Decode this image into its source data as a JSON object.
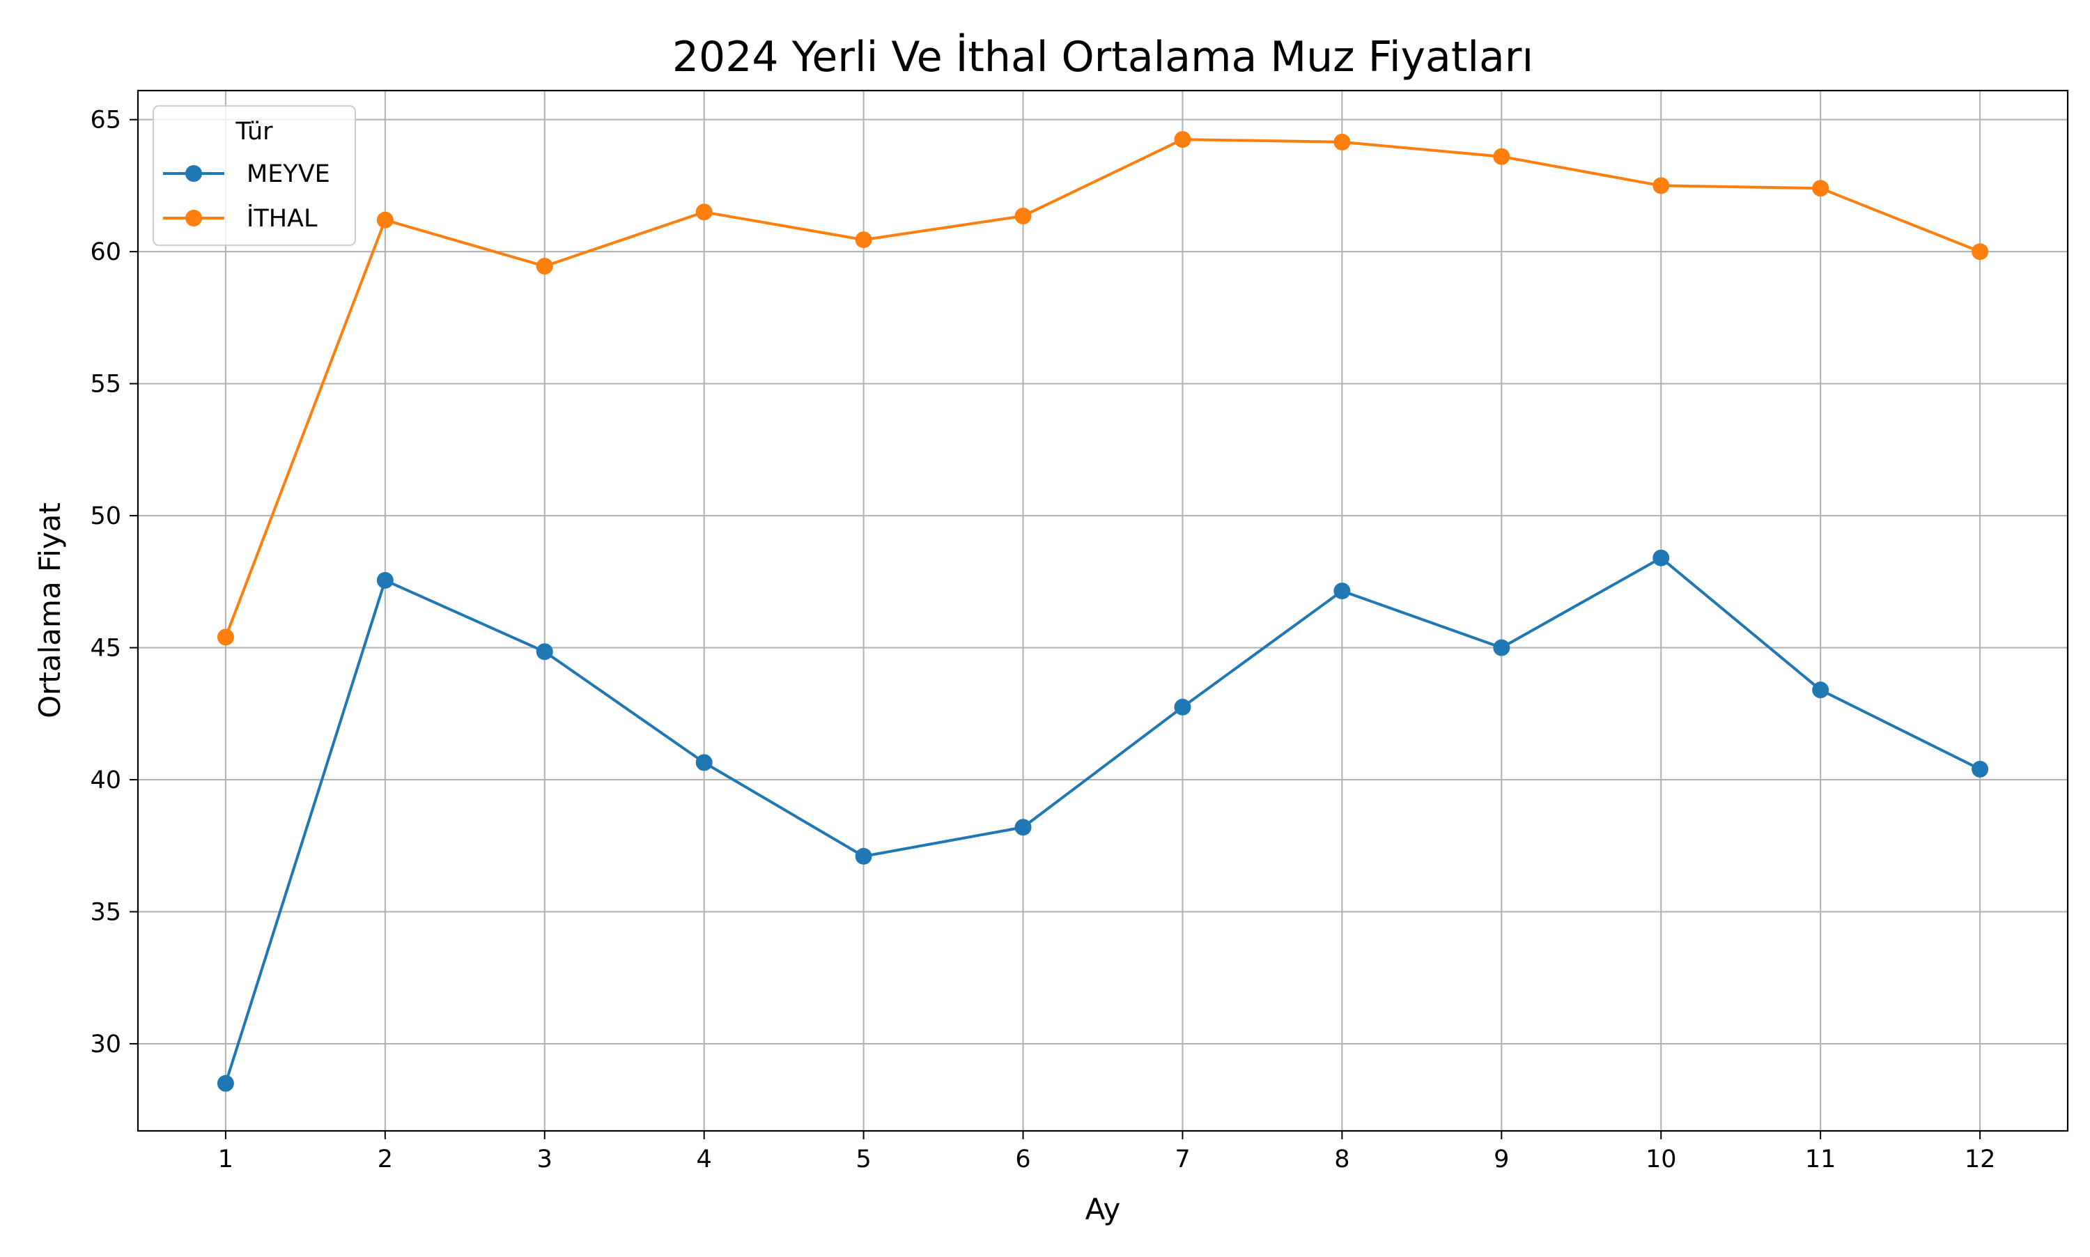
{
  "chart_data": {
    "type": "line",
    "title": "2024 Yerli Ve İthal Ortalama Muz Fiyatları",
    "xlabel": "Ay",
    "ylabel": "Ortalama Fiyat",
    "x": [
      1,
      2,
      3,
      4,
      5,
      6,
      7,
      8,
      9,
      10,
      11,
      12
    ],
    "xticks": [
      "1",
      "2",
      "3",
      "4",
      "5",
      "6",
      "7",
      "8",
      "9",
      "10",
      "11",
      "12"
    ],
    "yticks": [
      30,
      35,
      40,
      45,
      50,
      55,
      60,
      65
    ],
    "xlim": [
      0.45,
      12.55
    ],
    "ylim": [
      26.7,
      66.1
    ],
    "grid": true,
    "legend": {
      "title": "Tür",
      "placement": "top-left"
    },
    "series": [
      {
        "name": "MEYVE",
        "color": "#1f77b4",
        "values": [
          28.5,
          47.55,
          44.85,
          40.65,
          37.1,
          38.2,
          42.75,
          47.15,
          45.0,
          48.4,
          43.4,
          40.4
        ]
      },
      {
        "name": "İTHAL",
        "color": "#ff7f0e",
        "values": [
          45.4,
          61.2,
          59.45,
          61.5,
          60.45,
          61.35,
          64.25,
          64.15,
          63.6,
          62.5,
          62.4,
          60.0
        ]
      }
    ]
  }
}
